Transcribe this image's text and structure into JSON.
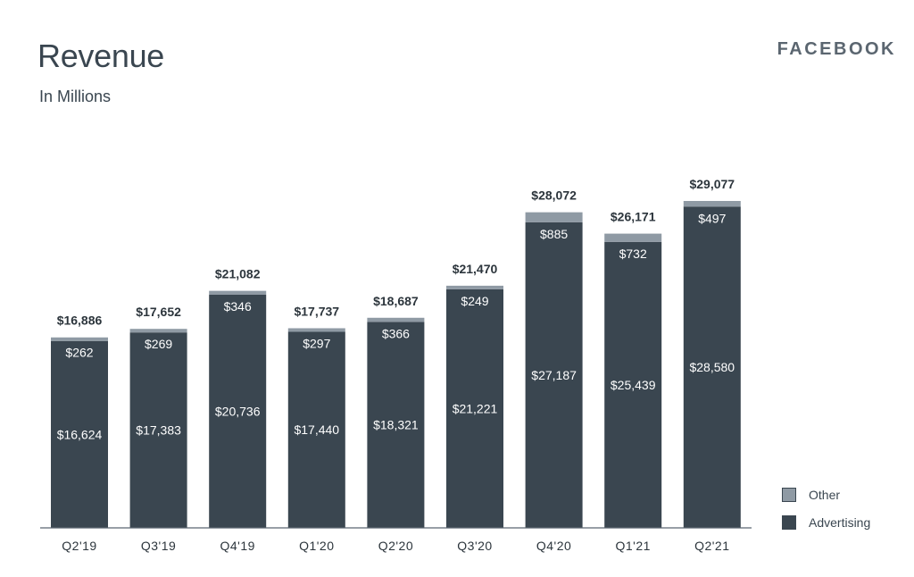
{
  "header": {
    "title": "Revenue",
    "subtitle": "In Millions",
    "brand": "FACEBOOK"
  },
  "colors": {
    "advertising": "#3a4650",
    "other": "#8f9aa4",
    "text_dark": "#2c353c",
    "axis": "#5b6670"
  },
  "legend": [
    {
      "label": "Other",
      "color": "#8f9aa4"
    },
    {
      "label": "Advertising",
      "color": "#3a4650"
    }
  ],
  "chart_data": {
    "type": "bar",
    "stacked": true,
    "categories": [
      "Q2'19",
      "Q3'19",
      "Q4'19",
      "Q1'20",
      "Q2'20",
      "Q3'20",
      "Q4'20",
      "Q1'21",
      "Q2'21"
    ],
    "series": [
      {
        "name": "Advertising",
        "values": [
          16624,
          17383,
          20736,
          17440,
          18321,
          21221,
          27187,
          25439,
          28580
        ],
        "labels": [
          "$16,624",
          "$17,383",
          "$20,736",
          "$17,440",
          "$18,321",
          "$21,221",
          "$27,187",
          "$25,439",
          "$28,580"
        ]
      },
      {
        "name": "Other",
        "values": [
          262,
          269,
          346,
          297,
          366,
          249,
          885,
          732,
          497
        ],
        "labels": [
          "$262",
          "$269",
          "$346",
          "$297",
          "$366",
          "$249",
          "$885",
          "$732",
          "$497"
        ]
      }
    ],
    "totals": [
      16886,
      17652,
      21082,
      17737,
      18687,
      21470,
      28072,
      26171,
      29077
    ],
    "total_labels": [
      "$16,886",
      "$17,652",
      "$21,082",
      "$17,737",
      "$18,687",
      "$21,470",
      "$28,072",
      "$26,171",
      "$29,077"
    ],
    "ylim": [
      0,
      29077
    ],
    "grid": false,
    "legend_position": "bottom-right"
  }
}
